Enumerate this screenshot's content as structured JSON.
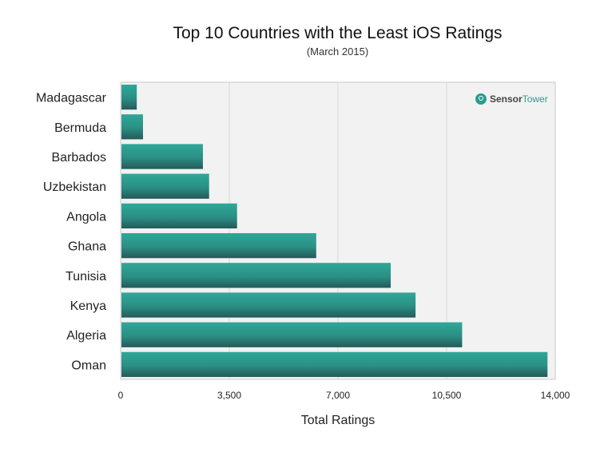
{
  "chart_data": {
    "type": "bar",
    "orientation": "horizontal",
    "title": "Top 10 Countries with the Least iOS Ratings",
    "subtitle": "(March 2015)",
    "xlabel": "Total Ratings",
    "ylabel": "",
    "categories": [
      "Madagascar",
      "Bermuda",
      "Barbados",
      "Uzbekistan",
      "Angola",
      "Ghana",
      "Tunisia",
      "Kenya",
      "Algeria",
      "Oman"
    ],
    "values": [
      520,
      720,
      2650,
      2850,
      3750,
      6300,
      8700,
      9500,
      11000,
      13750
    ],
    "xlim": [
      0,
      14000
    ],
    "xticks": [
      "0",
      "3,500",
      "7,000",
      "10,500",
      "14,000"
    ],
    "xtick_values": [
      0,
      3500,
      7000,
      10500,
      14000
    ],
    "grid": "vertical",
    "bar_color": "#2a9d8f",
    "bar_color_dark": "#245a5a",
    "plot_background": "#f0f0f0"
  },
  "watermark": {
    "text_a": "Sensor",
    "text_b": "Tower",
    "color": "#2a9d8f"
  }
}
